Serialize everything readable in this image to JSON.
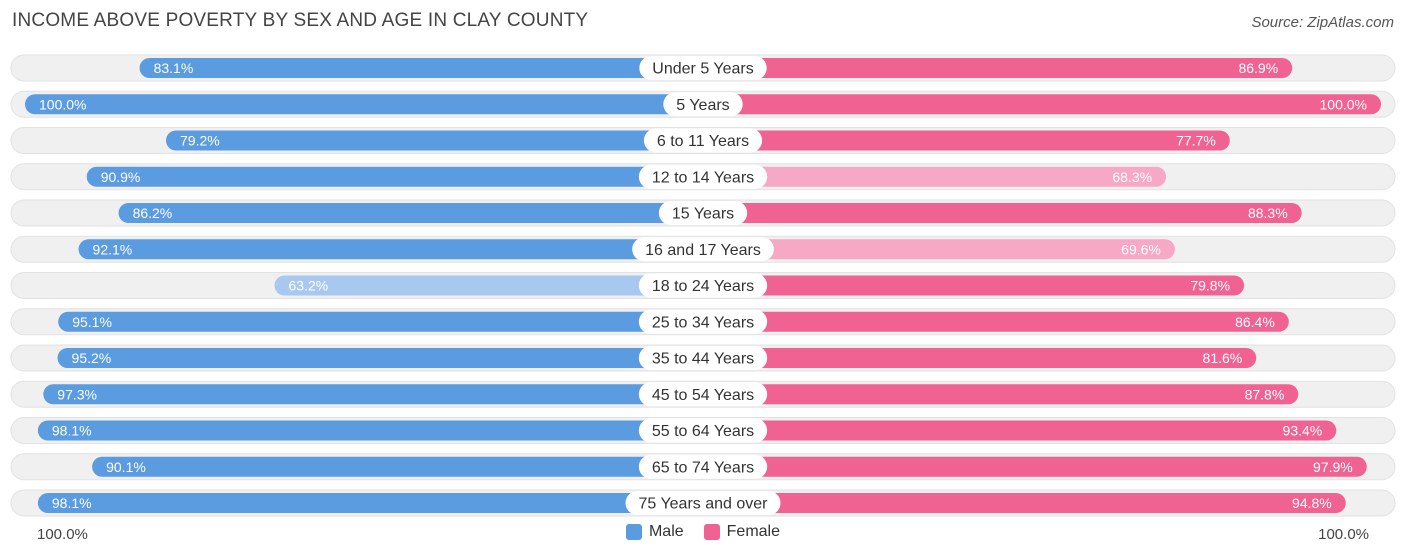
{
  "header": {
    "title": "INCOME ABOVE POVERTY BY SEX AND AGE IN CLAY COUNTY",
    "source": "Source: ZipAtlas.com"
  },
  "colors": {
    "male": "#5b9bdf",
    "male_light": "#a8c8ef",
    "female": "#f06292",
    "female_light": "#f7a8c4",
    "track": "#f0f0f0"
  },
  "axis": {
    "left_label": "100.0%",
    "right_label": "100.0%"
  },
  "legend": {
    "male_label": "Male",
    "female_label": "Female"
  },
  "chart_data": {
    "type": "bar",
    "orientation": "diverging-horizontal",
    "title": "INCOME ABOVE POVERTY BY SEX AND AGE IN CLAY COUNTY",
    "xlim": [
      0,
      100
    ],
    "categories": [
      "Under 5 Years",
      "5 Years",
      "6 to 11 Years",
      "12 to 14 Years",
      "15 Years",
      "16 and 17 Years",
      "18 to 24 Years",
      "25 to 34 Years",
      "35 to 44 Years",
      "45 to 54 Years",
      "55 to 64 Years",
      "65 to 74 Years",
      "75 Years and over"
    ],
    "series": [
      {
        "name": "Male",
        "values": [
          83.1,
          100.0,
          79.2,
          90.9,
          86.2,
          92.1,
          63.2,
          95.1,
          95.2,
          97.3,
          98.1,
          90.1,
          98.1
        ],
        "labels": [
          "83.1%",
          "100.0%",
          "79.2%",
          "90.9%",
          "86.2%",
          "92.1%",
          "63.2%",
          "95.1%",
          "95.2%",
          "97.3%",
          "98.1%",
          "90.1%",
          "98.1%"
        ]
      },
      {
        "name": "Female",
        "values": [
          86.9,
          100.0,
          77.7,
          68.3,
          88.3,
          69.6,
          79.8,
          86.4,
          81.6,
          87.8,
          93.4,
          97.9,
          94.8
        ],
        "labels": [
          "86.9%",
          "100.0%",
          "77.7%",
          "68.3%",
          "88.3%",
          "69.6%",
          "79.8%",
          "86.4%",
          "81.6%",
          "87.8%",
          "93.4%",
          "97.9%",
          "94.8%"
        ]
      }
    ]
  }
}
